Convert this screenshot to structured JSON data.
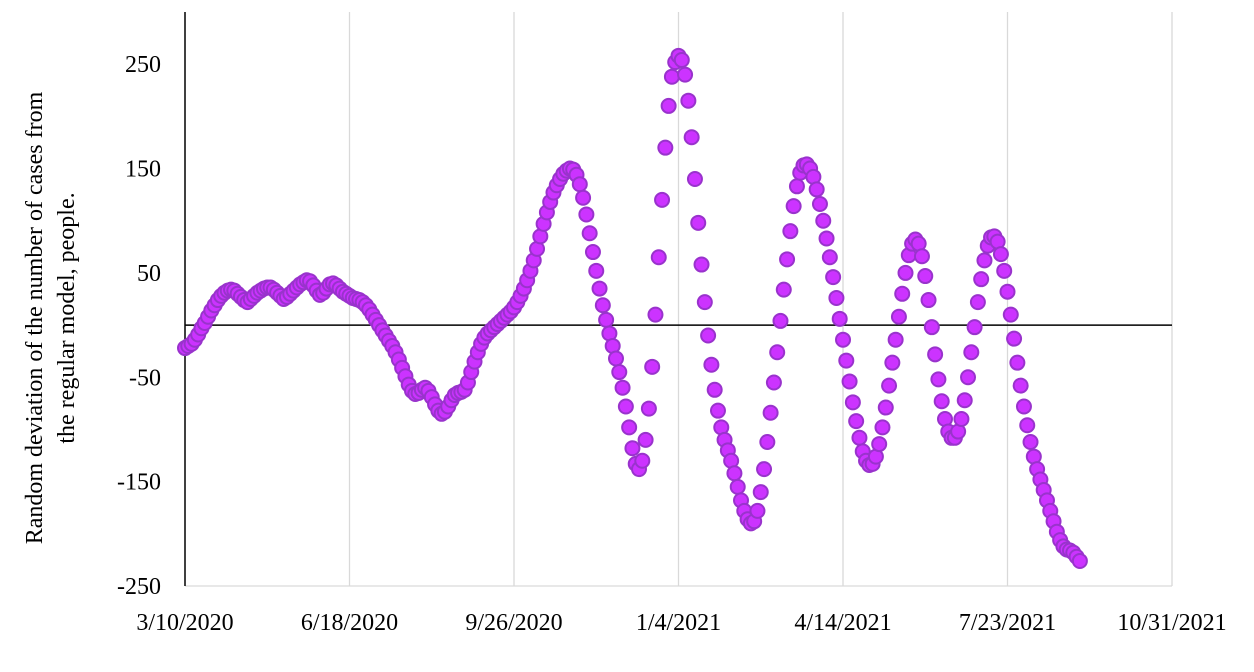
{
  "chart_data": {
    "type": "scatter",
    "title": "",
    "xlabel": "",
    "ylabel": "Random deviation of the number of cases from the regular model, people.",
    "ylabel_lines": [
      "Random deviation of the number of cases from",
      "the regular model, people."
    ],
    "x_ticks": [
      "3/10/2020",
      "6/18/2020",
      "9/26/2020",
      "1/4/2021",
      "4/14/2021",
      "7/23/2021",
      "10/31/2021"
    ],
    "x_range": [
      "2020-03-10",
      "2021-10-31"
    ],
    "y_ticks": [
      "250",
      "150",
      "50",
      "-50",
      "-150",
      "-250"
    ],
    "ylim": [
      -250,
      300
    ],
    "grid": "vertical",
    "reference_line": 0,
    "marker_fill": "#cc33ff",
    "marker_stroke": "#9933cc",
    "series": [
      {
        "points": [
          [
            "2020-03-10",
            -22
          ],
          [
            "2020-03-12",
            -20
          ],
          [
            "2020-03-14",
            -18
          ],
          [
            "2020-03-16",
            -14
          ],
          [
            "2020-03-18",
            -9
          ],
          [
            "2020-03-20",
            -3
          ],
          [
            "2020-03-22",
            2
          ],
          [
            "2020-03-24",
            8
          ],
          [
            "2020-03-26",
            14
          ],
          [
            "2020-03-28",
            19
          ],
          [
            "2020-03-30",
            24
          ],
          [
            "2020-04-01",
            28
          ],
          [
            "2020-04-03",
            31
          ],
          [
            "2020-04-05",
            33
          ],
          [
            "2020-04-07",
            34
          ],
          [
            "2020-04-09",
            33
          ],
          [
            "2020-04-11",
            30
          ],
          [
            "2020-04-13",
            27
          ],
          [
            "2020-04-15",
            24
          ],
          [
            "2020-04-17",
            22
          ],
          [
            "2020-04-19",
            25
          ],
          [
            "2020-04-21",
            28
          ],
          [
            "2020-04-23",
            31
          ],
          [
            "2020-04-25",
            33
          ],
          [
            "2020-04-27",
            35
          ],
          [
            "2020-04-29",
            36
          ],
          [
            "2020-05-01",
            36
          ],
          [
            "2020-05-03",
            34
          ],
          [
            "2020-05-05",
            31
          ],
          [
            "2020-05-07",
            28
          ],
          [
            "2020-05-09",
            25
          ],
          [
            "2020-05-11",
            27
          ],
          [
            "2020-05-13",
            30
          ],
          [
            "2020-05-15",
            33
          ],
          [
            "2020-05-17",
            36
          ],
          [
            "2020-05-19",
            39
          ],
          [
            "2020-05-21",
            41
          ],
          [
            "2020-05-23",
            43
          ],
          [
            "2020-05-25",
            42
          ],
          [
            "2020-05-27",
            38
          ],
          [
            "2020-05-29",
            33
          ],
          [
            "2020-05-31",
            29
          ],
          [
            "2020-06-02",
            31
          ],
          [
            "2020-06-04",
            35
          ],
          [
            "2020-06-06",
            39
          ],
          [
            "2020-06-08",
            40
          ],
          [
            "2020-06-10",
            38
          ],
          [
            "2020-06-12",
            35
          ],
          [
            "2020-06-14",
            32
          ],
          [
            "2020-06-16",
            30
          ],
          [
            "2020-06-18",
            28
          ],
          [
            "2020-06-20",
            26
          ],
          [
            "2020-06-22",
            25
          ],
          [
            "2020-06-24",
            24
          ],
          [
            "2020-06-26",
            22
          ],
          [
            "2020-06-28",
            19
          ],
          [
            "2020-06-30",
            15
          ],
          [
            "2020-07-02",
            10
          ],
          [
            "2020-07-04",
            5
          ],
          [
            "2020-07-06",
            0
          ],
          [
            "2020-07-08",
            -5
          ],
          [
            "2020-07-10",
            -10
          ],
          [
            "2020-07-12",
            -15
          ],
          [
            "2020-07-14",
            -20
          ],
          [
            "2020-07-16",
            -26
          ],
          [
            "2020-07-18",
            -33
          ],
          [
            "2020-07-20",
            -41
          ],
          [
            "2020-07-22",
            -49
          ],
          [
            "2020-07-24",
            -57
          ],
          [
            "2020-07-26",
            -63
          ],
          [
            "2020-07-28",
            -66
          ],
          [
            "2020-07-30",
            -65
          ],
          [
            "2020-08-01",
            -62
          ],
          [
            "2020-08-03",
            -60
          ],
          [
            "2020-08-05",
            -63
          ],
          [
            "2020-08-07",
            -69
          ],
          [
            "2020-08-09",
            -76
          ],
          [
            "2020-08-11",
            -82
          ],
          [
            "2020-08-13",
            -85
          ],
          [
            "2020-08-15",
            -83
          ],
          [
            "2020-08-17",
            -78
          ],
          [
            "2020-08-19",
            -72
          ],
          [
            "2020-08-21",
            -67
          ],
          [
            "2020-08-23",
            -65
          ],
          [
            "2020-08-25",
            -64
          ],
          [
            "2020-08-27",
            -62
          ],
          [
            "2020-08-29",
            -55
          ],
          [
            "2020-08-31",
            -45
          ],
          [
            "2020-09-02",
            -35
          ],
          [
            "2020-09-04",
            -26
          ],
          [
            "2020-09-06",
            -18
          ],
          [
            "2020-09-08",
            -12
          ],
          [
            "2020-09-10",
            -8
          ],
          [
            "2020-09-12",
            -5
          ],
          [
            "2020-09-14",
            -2
          ],
          [
            "2020-09-16",
            1
          ],
          [
            "2020-09-18",
            4
          ],
          [
            "2020-09-20",
            7
          ],
          [
            "2020-09-22",
            10
          ],
          [
            "2020-09-24",
            13
          ],
          [
            "2020-09-26",
            17
          ],
          [
            "2020-09-28",
            22
          ],
          [
            "2020-09-30",
            28
          ],
          [
            "2020-10-02",
            35
          ],
          [
            "2020-10-04",
            43
          ],
          [
            "2020-10-06",
            52
          ],
          [
            "2020-10-08",
            62
          ],
          [
            "2020-10-10",
            73
          ],
          [
            "2020-10-12",
            85
          ],
          [
            "2020-10-14",
            97
          ],
          [
            "2020-10-16",
            108
          ],
          [
            "2020-10-18",
            118
          ],
          [
            "2020-10-20",
            127
          ],
          [
            "2020-10-22",
            134
          ],
          [
            "2020-10-24",
            140
          ],
          [
            "2020-10-26",
            145
          ],
          [
            "2020-10-28",
            148
          ],
          [
            "2020-10-30",
            150
          ],
          [
            "2020-11-01",
            149
          ],
          [
            "2020-11-03",
            144
          ],
          [
            "2020-11-05",
            135
          ],
          [
            "2020-11-07",
            122
          ],
          [
            "2020-11-09",
            106
          ],
          [
            "2020-11-11",
            88
          ],
          [
            "2020-11-13",
            70
          ],
          [
            "2020-11-15",
            52
          ],
          [
            "2020-11-17",
            35
          ],
          [
            "2020-11-19",
            19
          ],
          [
            "2020-11-21",
            5
          ],
          [
            "2020-11-23",
            -8
          ],
          [
            "2020-11-25",
            -20
          ],
          [
            "2020-11-27",
            -32
          ],
          [
            "2020-11-29",
            -45
          ],
          [
            "2020-12-01",
            -60
          ],
          [
            "2020-12-03",
            -78
          ],
          [
            "2020-12-05",
            -98
          ],
          [
            "2020-12-07",
            -118
          ],
          [
            "2020-12-09",
            -133
          ],
          [
            "2020-12-11",
            -138
          ],
          [
            "2020-12-13",
            -130
          ],
          [
            "2020-12-15",
            -110
          ],
          [
            "2020-12-17",
            -80
          ],
          [
            "2020-12-19",
            -40
          ],
          [
            "2020-12-21",
            10
          ],
          [
            "2020-12-23",
            65
          ],
          [
            "2020-12-25",
            120
          ],
          [
            "2020-12-27",
            170
          ],
          [
            "2020-12-29",
            210
          ],
          [
            "2020-12-31",
            238
          ],
          [
            "2021-01-02",
            252
          ],
          [
            "2021-01-04",
            258
          ],
          [
            "2021-01-06",
            254
          ],
          [
            "2021-01-08",
            240
          ],
          [
            "2021-01-10",
            215
          ],
          [
            "2021-01-12",
            180
          ],
          [
            "2021-01-14",
            140
          ],
          [
            "2021-01-16",
            98
          ],
          [
            "2021-01-18",
            58
          ],
          [
            "2021-01-20",
            22
          ],
          [
            "2021-01-22",
            -10
          ],
          [
            "2021-01-24",
            -38
          ],
          [
            "2021-01-26",
            -62
          ],
          [
            "2021-01-28",
            -82
          ],
          [
            "2021-01-30",
            -98
          ],
          [
            "2021-02-01",
            -110
          ],
          [
            "2021-02-03",
            -120
          ],
          [
            "2021-02-05",
            -130
          ],
          [
            "2021-02-07",
            -142
          ],
          [
            "2021-02-09",
            -155
          ],
          [
            "2021-02-11",
            -168
          ],
          [
            "2021-02-13",
            -178
          ],
          [
            "2021-02-15",
            -186
          ],
          [
            "2021-02-17",
            -190
          ],
          [
            "2021-02-19",
            -188
          ],
          [
            "2021-02-21",
            -178
          ],
          [
            "2021-02-23",
            -160
          ],
          [
            "2021-02-25",
            -138
          ],
          [
            "2021-02-27",
            -112
          ],
          [
            "2021-03-01",
            -84
          ],
          [
            "2021-03-03",
            -55
          ],
          [
            "2021-03-05",
            -26
          ],
          [
            "2021-03-07",
            4
          ],
          [
            "2021-03-09",
            34
          ],
          [
            "2021-03-11",
            63
          ],
          [
            "2021-03-13",
            90
          ],
          [
            "2021-03-15",
            114
          ],
          [
            "2021-03-17",
            133
          ],
          [
            "2021-03-19",
            146
          ],
          [
            "2021-03-21",
            153
          ],
          [
            "2021-03-23",
            154
          ],
          [
            "2021-03-25",
            150
          ],
          [
            "2021-03-27",
            142
          ],
          [
            "2021-03-29",
            130
          ],
          [
            "2021-03-31",
            116
          ],
          [
            "2021-04-02",
            100
          ],
          [
            "2021-04-04",
            83
          ],
          [
            "2021-04-06",
            65
          ],
          [
            "2021-04-08",
            46
          ],
          [
            "2021-04-10",
            26
          ],
          [
            "2021-04-12",
            6
          ],
          [
            "2021-04-14",
            -14
          ],
          [
            "2021-04-16",
            -34
          ],
          [
            "2021-04-18",
            -54
          ],
          [
            "2021-04-20",
            -74
          ],
          [
            "2021-04-22",
            -92
          ],
          [
            "2021-04-24",
            -108
          ],
          [
            "2021-04-26",
            -121
          ],
          [
            "2021-04-28",
            -130
          ],
          [
            "2021-04-30",
            -134
          ],
          [
            "2021-05-02",
            -133
          ],
          [
            "2021-05-04",
            -126
          ],
          [
            "2021-05-06",
            -114
          ],
          [
            "2021-05-08",
            -98
          ],
          [
            "2021-05-10",
            -79
          ],
          [
            "2021-05-12",
            -58
          ],
          [
            "2021-05-14",
            -36
          ],
          [
            "2021-05-16",
            -14
          ],
          [
            "2021-05-18",
            8
          ],
          [
            "2021-05-20",
            30
          ],
          [
            "2021-05-22",
            50
          ],
          [
            "2021-05-24",
            67
          ],
          [
            "2021-05-26",
            78
          ],
          [
            "2021-05-28",
            82
          ],
          [
            "2021-05-30",
            78
          ],
          [
            "2021-06-01",
            66
          ],
          [
            "2021-06-03",
            47
          ],
          [
            "2021-06-05",
            24
          ],
          [
            "2021-06-07",
            -2
          ],
          [
            "2021-06-09",
            -28
          ],
          [
            "2021-06-11",
            -52
          ],
          [
            "2021-06-13",
            -73
          ],
          [
            "2021-06-15",
            -90
          ],
          [
            "2021-06-17",
            -102
          ],
          [
            "2021-06-19",
            -108
          ],
          [
            "2021-06-21",
            -108
          ],
          [
            "2021-06-23",
            -102
          ],
          [
            "2021-06-25",
            -90
          ],
          [
            "2021-06-27",
            -72
          ],
          [
            "2021-06-29",
            -50
          ],
          [
            "2021-07-01",
            -26
          ],
          [
            "2021-07-03",
            -2
          ],
          [
            "2021-07-05",
            22
          ],
          [
            "2021-07-07",
            44
          ],
          [
            "2021-07-09",
            62
          ],
          [
            "2021-07-11",
            76
          ],
          [
            "2021-07-13",
            84
          ],
          [
            "2021-07-15",
            85
          ],
          [
            "2021-07-17",
            80
          ],
          [
            "2021-07-19",
            68
          ],
          [
            "2021-07-21",
            52
          ],
          [
            "2021-07-23",
            32
          ],
          [
            "2021-07-25",
            10
          ],
          [
            "2021-07-27",
            -13
          ],
          [
            "2021-07-29",
            -36
          ],
          [
            "2021-07-31",
            -58
          ],
          [
            "2021-08-02",
            -78
          ],
          [
            "2021-08-04",
            -96
          ],
          [
            "2021-08-06",
            -112
          ],
          [
            "2021-08-08",
            -126
          ],
          [
            "2021-08-10",
            -138
          ],
          [
            "2021-08-12",
            -148
          ],
          [
            "2021-08-14",
            -158
          ],
          [
            "2021-08-16",
            -168
          ],
          [
            "2021-08-18",
            -178
          ],
          [
            "2021-08-20",
            -188
          ],
          [
            "2021-08-22",
            -198
          ],
          [
            "2021-08-24",
            -206
          ],
          [
            "2021-08-26",
            -212
          ],
          [
            "2021-08-28",
            -215
          ],
          [
            "2021-08-30",
            -216
          ],
          [
            "2021-09-01",
            -218
          ],
          [
            "2021-09-03",
            -222
          ],
          [
            "2021-09-05",
            -226
          ]
        ]
      }
    ]
  }
}
